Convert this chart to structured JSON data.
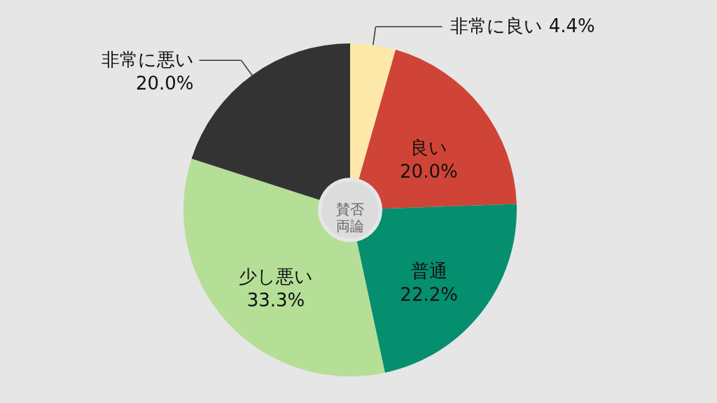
{
  "chart_data": {
    "type": "donut",
    "categories": [
      "非常に良い",
      "良い",
      "普通",
      "少し悪い",
      "非常に悪い"
    ],
    "values": [
      4.4,
      20.0,
      22.2,
      33.3,
      20.0
    ],
    "value_labels": [
      "4.4%",
      "20.0%",
      "22.2%",
      "33.3%",
      "20.0%"
    ],
    "colors": [
      "#fde7a9",
      "#d04437",
      "#068f6f",
      "#b5df97",
      "#333333"
    ],
    "annotations": [
      "賛否両論"
    ]
  }
}
